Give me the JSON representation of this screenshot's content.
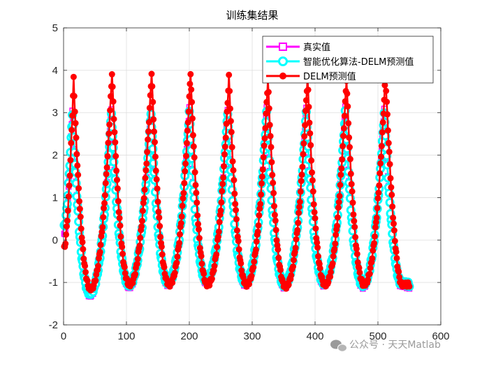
{
  "chart_data": {
    "type": "line",
    "title": "训练集结果",
    "xlabel": "",
    "ylabel": "",
    "xlim": [
      0,
      600
    ],
    "ylim": [
      -2,
      5
    ],
    "xticks": [
      "0",
      "100",
      "200",
      "300",
      "400",
      "500",
      "600"
    ],
    "yticks": [
      "-2",
      "-1",
      "0",
      "1",
      "2",
      "3",
      "4",
      "5"
    ],
    "grid": true,
    "legend_position": "top-right",
    "x_range": [
      1,
      550
    ],
    "period": 62,
    "series": [
      {
        "name": "真实值",
        "color": "#ff00ff",
        "marker": "square",
        "peak_days": [
          14,
          76,
          139,
          200,
          261,
          323,
          386,
          448,
          510
        ],
        "peak_values": [
          3.1,
          3.1,
          3.1,
          3.1,
          3.1,
          3.1,
          3.1,
          3.1,
          3.1
        ],
        "trough_values": [
          -1.3,
          -1.1,
          -1.05,
          -1.0,
          -1.05,
          -1.1,
          -1.05,
          -1.1,
          -1.05
        ],
        "start_value": 0.1,
        "end_value": -1.1
      },
      {
        "name": "智能优化算法-DELM预测值",
        "color": "#00ffff",
        "marker": "circle",
        "peak_days": [
          14,
          76,
          139,
          200,
          261,
          323,
          386,
          448,
          510
        ],
        "peak_values": [
          3.0,
          3.0,
          3.0,
          3.0,
          3.0,
          3.0,
          3.0,
          3.0,
          3.0
        ],
        "trough_values": [
          -1.25,
          -1.05,
          -1.0,
          -0.95,
          -1.0,
          -1.05,
          -1.0,
          -1.05,
          -1.0
        ],
        "start_value": 0.3,
        "end_value": -1.05
      },
      {
        "name": "DELM预测值",
        "color": "#ff0000",
        "marker": "circle",
        "peak_days": [
          16,
          77,
          140,
          202,
          263,
          325,
          388,
          450,
          512
        ],
        "peak_values": [
          3.8,
          3.95,
          3.95,
          3.95,
          3.85,
          3.8,
          3.85,
          3.8,
          3.9
        ],
        "trough_values": [
          -1.15,
          -1.05,
          -1.05,
          -1.05,
          -1.05,
          -1.1,
          -1.05,
          -1.05,
          -1.05
        ],
        "start_value": -0.2,
        "end_value": -1.05
      }
    ]
  },
  "watermark": {
    "icon": "wechat-icon",
    "text": "公众号 · 天天Matlab"
  }
}
